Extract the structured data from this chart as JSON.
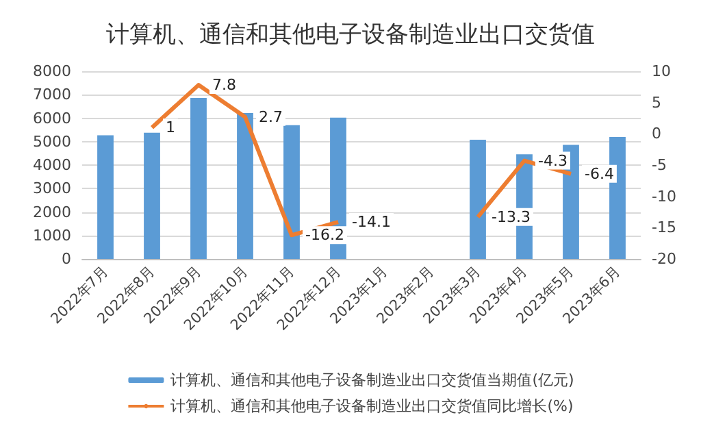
{
  "chart_data": {
    "type": "bar",
    "title": "计算机、通信和其他电子设备制造业出口交货值",
    "categories": [
      "2022年7月",
      "2022年8月",
      "2022年9月",
      "2022年10月",
      "2022年11月",
      "2022年12月",
      "2023年1月",
      "2023年2月",
      "2023年3月",
      "2023年4月",
      "2023年5月",
      "2023年6月"
    ],
    "series": [
      {
        "name": "计算机、通信和其他电子设备制造业出口交货值当期值(亿元)",
        "color": "#5b9bd5",
        "values": [
          5270,
          5380,
          6860,
          6220,
          5700,
          6020,
          null,
          null,
          5080,
          4460,
          4860,
          5200
        ]
      },
      {
        "name": "计算机、通信和其他电子设备制造业出口交货值同比增长(%)",
        "type": "line",
        "axis": "y2",
        "color": "#ed7d31",
        "values": [
          null,
          1,
          7.8,
          2.7,
          -16.2,
          -14.1,
          null,
          null,
          -13.3,
          -4.3,
          -6.4,
          null
        ],
        "value_labels": [
          null,
          "1",
          "7.8",
          "2.7",
          "-16.2",
          "-14.1",
          null,
          null,
          "-13.3",
          "-4.3",
          "-6.4",
          null
        ]
      }
    ],
    "ylim": [
      0,
      8000
    ],
    "yticks": [
      0,
      1000,
      2000,
      3000,
      4000,
      5000,
      6000,
      7000,
      8000
    ],
    "y2lim": [
      -20,
      10
    ],
    "y2ticks": [
      -20,
      -15,
      -10,
      -5,
      0,
      5,
      10
    ],
    "grid": true,
    "legend": "bottom",
    "marker": "none"
  }
}
